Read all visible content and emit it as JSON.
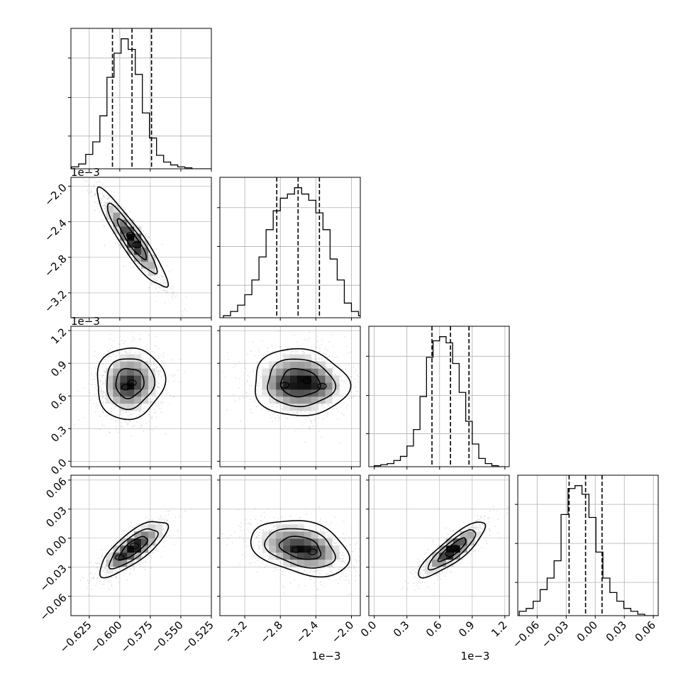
{
  "chart_data": {
    "type": "corner",
    "colors": {
      "hist": "#000000",
      "grid": "#b0b0b0",
      "scatter": "#9a9a9a",
      "contour": "#000000"
    },
    "grid": true,
    "params": [
      {
        "offset_label": "",
        "range": [
          -0.64,
          -0.525
        ],
        "ticks": [
          -0.625,
          -0.6,
          -0.575,
          -0.55,
          -0.525
        ],
        "tick_labels": [
          "−0.625",
          "−0.600",
          "−0.575",
          "−0.550",
          "−0.525"
        ],
        "quantiles": [
          -0.606,
          -0.59,
          -0.574
        ],
        "hist_edges_start": -0.6395,
        "hist_bin_width": 0.0058,
        "hist_counts": [
          2,
          5,
          15,
          28,
          55,
          95,
          120,
          135,
          124,
          98,
          58,
          32,
          14,
          7,
          4,
          2,
          1,
          0,
          0,
          0
        ]
      },
      {
        "offset_label": "1e−3",
        "range": [
          -3.48,
          -1.9
        ],
        "ticks": [
          -3.2,
          -2.8,
          -2.4,
          -2.0
        ],
        "tick_labels": [
          "−3.2",
          "−2.8",
          "−2.4",
          "−2.0"
        ],
        "quantiles": [
          -2.84,
          -2.6,
          -2.36
        ],
        "hist_edges_start": -3.44,
        "hist_bin_width": 0.08,
        "hist_counts": [
          2,
          6,
          12,
          22,
          36,
          58,
          84,
          102,
          114,
          118,
          124,
          118,
          112,
          100,
          84,
          56,
          36,
          14,
          6,
          2
        ]
      },
      {
        "offset_label": "1e−3",
        "range": [
          -0.05,
          1.24
        ],
        "ticks": [
          0.0,
          0.3,
          0.6,
          0.9,
          1.2
        ],
        "tick_labels": [
          "0.0",
          "0.3",
          "0.6",
          "0.9",
          "1.2"
        ],
        "quantiles": [
          0.53,
          0.7,
          0.87
        ],
        "hist_edges_start": 0.0,
        "hist_bin_width": 0.06,
        "hist_counts": [
          1,
          2,
          3,
          6,
          10,
          20,
          36,
          68,
          106,
          122,
          126,
          120,
          100,
          72,
          44,
          22,
          8,
          3,
          1,
          0
        ]
      },
      {
        "offset_label": "",
        "range": [
          -0.08,
          0.065
        ],
        "ticks": [
          -0.06,
          -0.03,
          0.0,
          0.03,
          0.06
        ],
        "tick_labels": [
          "−0.06",
          "−0.03",
          "0.00",
          "0.03",
          "0.06"
        ],
        "quantiles": [
          -0.027,
          -0.01,
          0.007
        ],
        "hist_edges_start": -0.0785,
        "hist_bin_width": 0.0072,
        "hist_counts": [
          3,
          5,
          10,
          18,
          26,
          38,
          70,
          88,
          90,
          84,
          68,
          44,
          26,
          16,
          10,
          5,
          3,
          1,
          0,
          0
        ]
      }
    ],
    "pairs": [
      {
        "x": 0,
        "y": 1,
        "mean": [
          -0.59,
          -2.6
        ],
        "sd": [
          0.014,
          0.27
        ],
        "rho": -0.92,
        "peaks": [
          [
            -0.591,
            -2.55
          ],
          [
            -0.586,
            -2.66
          ]
        ]
      },
      {
        "x": 0,
        "y": 2,
        "mean": [
          -0.592,
          0.72
        ],
        "sd": [
          0.0135,
          0.16
        ],
        "rho": 0.05,
        "peaks": [
          [
            -0.595,
            0.68
          ],
          [
            -0.59,
            0.72
          ]
        ]
      },
      {
        "x": 1,
        "y": 2,
        "mean": [
          -2.58,
          0.72
        ],
        "sd": [
          0.26,
          0.15
        ],
        "rho": -0.05,
        "peaks": [
          [
            -2.75,
            0.7
          ],
          [
            -2.5,
            0.74
          ],
          [
            -2.33,
            0.69
          ]
        ]
      },
      {
        "x": 0,
        "y": 3,
        "mean": [
          -0.589,
          -0.01
        ],
        "sd": [
          0.0135,
          0.014
        ],
        "rho": 0.78,
        "peaks": [
          [
            -0.6,
            -0.02
          ],
          [
            -0.588,
            -0.008
          ]
        ]
      },
      {
        "x": 1,
        "y": 3,
        "mean": [
          -2.57,
          -0.01
        ],
        "sd": [
          0.27,
          0.014
        ],
        "rho": -0.32,
        "peaks": [
          [
            -2.62,
            -0.012
          ],
          [
            -2.44,
            -0.014
          ]
        ]
      },
      {
        "x": 2,
        "y": 3,
        "mean": [
          0.72,
          -0.012
        ],
        "sd": [
          0.15,
          0.014
        ],
        "rho": 0.86,
        "peaks": [
          [
            0.69,
            -0.016
          ],
          [
            0.74,
            -0.01
          ]
        ]
      }
    ]
  }
}
